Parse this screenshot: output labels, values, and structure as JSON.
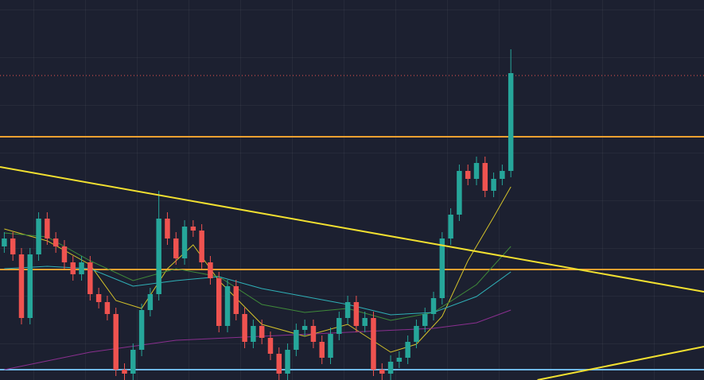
{
  "chart_data": {
    "type": "candlestick",
    "xlim": [
      -0.5,
      81.5
    ],
    "ylim": [
      0,
      478
    ],
    "up_color": "#26a69a",
    "down_color": "#ef5350",
    "open": [
      168,
      178,
      158,
      78,
      158,
      203,
      178,
      168,
      148,
      133,
      148,
      108,
      98,
      83,
      13,
      8,
      38,
      88,
      108,
      203,
      178,
      153,
      193,
      188,
      148,
      128,
      68,
      118,
      83,
      48,
      68,
      53,
      33,
      8,
      38,
      63,
      68,
      48,
      28,
      58,
      78,
      98,
      68,
      78,
      13,
      8,
      23,
      28,
      48,
      68,
      83,
      103,
      178,
      208,
      263,
      253,
      273,
      238,
      253,
      263
    ],
    "high": [
      186,
      186,
      166,
      166,
      211,
      211,
      186,
      176,
      156,
      156,
      156,
      116,
      106,
      91,
      21,
      46,
      96,
      116,
      238,
      211,
      186,
      201,
      201,
      196,
      156,
      136,
      126,
      126,
      91,
      76,
      76,
      61,
      41,
      46,
      71,
      76,
      76,
      56,
      66,
      86,
      106,
      106,
      86,
      86,
      21,
      31,
      36,
      56,
      76,
      91,
      111,
      186,
      216,
      271,
      271,
      281,
      281,
      261,
      271,
      416
    ],
    "low": [
      160,
      150,
      70,
      70,
      150,
      170,
      160,
      140,
      125,
      125,
      100,
      90,
      75,
      5,
      0,
      0,
      30,
      80,
      100,
      170,
      145,
      145,
      180,
      140,
      120,
      60,
      60,
      75,
      40,
      40,
      45,
      25,
      0,
      0,
      30,
      55,
      40,
      20,
      20,
      50,
      70,
      60,
      60,
      5,
      0,
      0,
      15,
      20,
      40,
      60,
      75,
      95,
      170,
      200,
      245,
      245,
      230,
      230,
      245,
      255
    ],
    "close": [
      178,
      158,
      78,
      158,
      203,
      178,
      168,
      148,
      133,
      148,
      108,
      98,
      83,
      13,
      8,
      38,
      88,
      108,
      203,
      178,
      153,
      193,
      188,
      148,
      128,
      68,
      118,
      83,
      48,
      68,
      53,
      33,
      8,
      38,
      63,
      68,
      48,
      28,
      58,
      78,
      98,
      68,
      78,
      13,
      8,
      23,
      28,
      48,
      68,
      83,
      103,
      178,
      208,
      263,
      253,
      273,
      238,
      253,
      263,
      386
    ],
    "series": [
      {
        "color": "#d4c22a",
        "x": [
          0,
          5,
          10,
          13,
          16,
          19,
          22,
          25,
          30,
          35,
          40,
          45,
          48,
          51,
          54,
          57,
          59
        ],
        "values": [
          190,
          175,
          145,
          100,
          90,
          140,
          170,
          125,
          70,
          55,
          70,
          35,
          45,
          80,
          150,
          205,
          243
        ]
      },
      {
        "color": "#3f8a3a",
        "x": [
          0,
          5,
          10,
          15,
          20,
          25,
          30,
          35,
          40,
          45,
          50,
          55,
          59
        ],
        "values": [
          185,
          180,
          150,
          125,
          140,
          130,
          95,
          85,
          90,
          75,
          85,
          120,
          168
        ]
      },
      {
        "color": "#2fb1b8",
        "x": [
          0,
          5,
          10,
          15,
          20,
          25,
          30,
          35,
          40,
          45,
          50,
          55,
          59
        ],
        "values": [
          140,
          143,
          140,
          118,
          125,
          130,
          115,
          105,
          95,
          82,
          85,
          105,
          136
        ]
      },
      {
        "color": "#8a2f8f",
        "x": [
          0,
          10,
          20,
          30,
          40,
          50,
          55,
          59
        ],
        "values": [
          13,
          35,
          50,
          55,
          60,
          65,
          72,
          88
        ]
      }
    ],
    "levels": [
      {
        "value": 306,
        "color": "#f0a030",
        "style": "solid"
      },
      {
        "value": 139,
        "color": "#f0a030",
        "style": "solid"
      },
      {
        "value": 13,
        "color": "#6fb8e8",
        "style": "solid"
      },
      {
        "value": 383,
        "color": "#ef5350",
        "style": "dotted"
      }
    ],
    "trendlines": [
      {
        "color": "#f2e030",
        "x": [
          -0.5,
          81.5
        ],
        "values": [
          268,
          111
        ]
      },
      {
        "color": "#f2e030",
        "x": [
          62.1,
          81.5
        ],
        "values": [
          0,
          42
        ]
      }
    ]
  }
}
